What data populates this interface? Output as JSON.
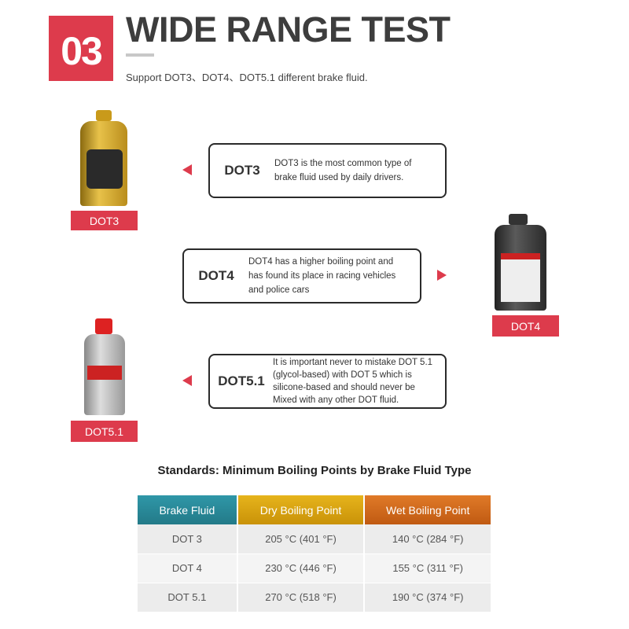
{
  "header": {
    "number": "03",
    "title": "WIDE RANGE TEST",
    "subtitle": "Support DOT3、DOT4、DOT5.1 different brake fluid."
  },
  "accent_color": "#dd3b4c",
  "fluids": [
    {
      "name": "DOT3",
      "description": "DOT3 is the most common type of brake fluid used by daily drivers.",
      "tag": "DOT3"
    },
    {
      "name": "DOT4",
      "description": "DOT4 has a higher boiling point and has found its place in racing vehicles and police cars",
      "tag": "DOT4"
    },
    {
      "name": "DOT5.1",
      "description": "It is important never to mistake DOT 5.1 (glycol-based) with DOT 5 which is silicone-based and should never be Mixed with any other DOT fluid.",
      "tag": "DOT5.1"
    }
  ],
  "table": {
    "title": "Standards: Minimum Boiling Points by Brake Fluid Type",
    "headers": [
      "Brake Fluid",
      "Dry Boiling Point",
      "Wet Boiling Point"
    ],
    "header_colors": [
      "#2a8a9a",
      "#d9a512",
      "#d26a1c"
    ],
    "rows": [
      [
        "DOT 3",
        "205 °C (401 °F)",
        "140 °C (284 °F)"
      ],
      [
        "DOT 4",
        "230 °C (446 °F)",
        "155 °C (311 °F)"
      ],
      [
        "DOT 5.1",
        "270 °C (518 °F)",
        "190 °C (374 °F)"
      ]
    ]
  }
}
